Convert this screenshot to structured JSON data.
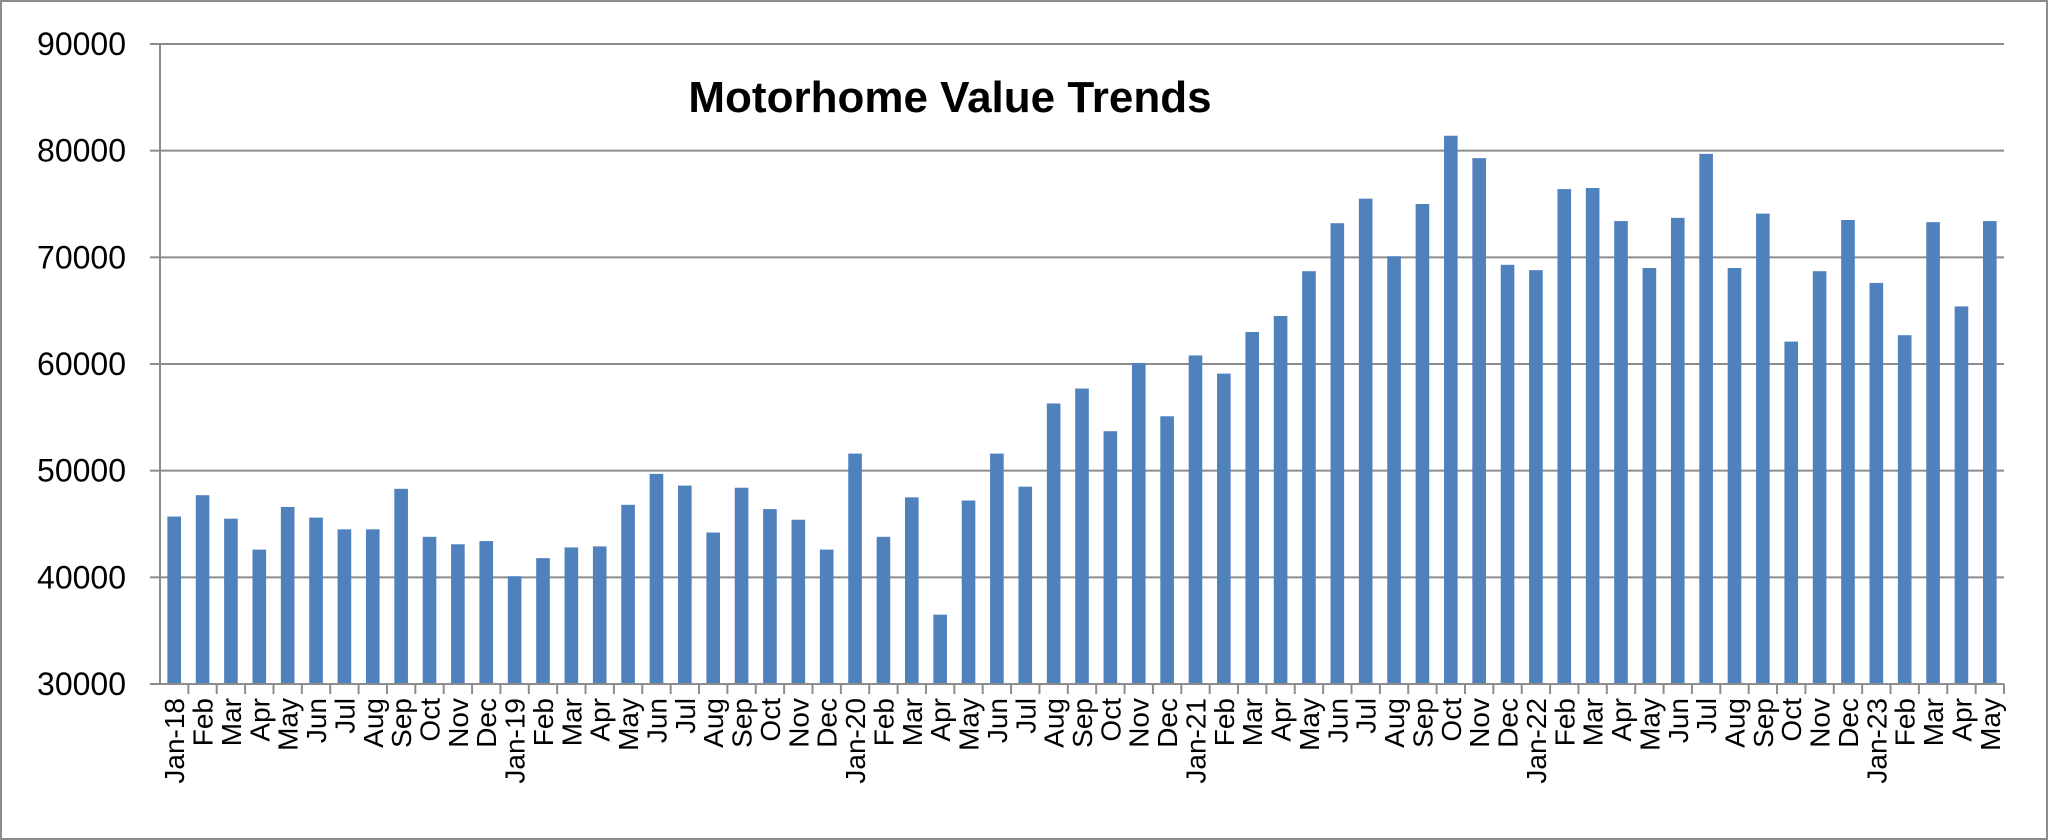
{
  "chart_data": {
    "type": "bar",
    "title": "Motorhome Value Trends",
    "xlabel": "",
    "ylabel": "",
    "ylim": [
      30000,
      90000
    ],
    "y_ticks": [
      30000,
      40000,
      50000,
      60000,
      70000,
      80000,
      90000
    ],
    "grid": true,
    "legend": "none",
    "bar_color": "#4f81bd",
    "categories": [
      "Jan-18",
      "Feb",
      "Mar",
      "Apr",
      "May",
      "Jun",
      "Jul",
      "Aug",
      "Sep",
      "Oct",
      "Nov",
      "Dec",
      "Jan-19",
      "Feb",
      "Mar",
      "Apr",
      "May",
      "Jun",
      "Jul",
      "Aug",
      "Sep",
      "Oct",
      "Nov",
      "Dec",
      "Jan-20",
      "Feb",
      "Mar",
      "Apr",
      "May",
      "Jun",
      "Jul",
      "Aug",
      "Sep",
      "Oct",
      "Nov",
      "Dec",
      "Jan-21",
      "Feb",
      "Mar",
      "Apr",
      "May",
      "Jun",
      "Jul",
      "Aug",
      "Sep",
      "Oct",
      "Nov",
      "Dec",
      "Jan-22",
      "Feb",
      "Mar",
      "Apr",
      "May",
      "Jun",
      "Jul",
      "Aug",
      "Sep",
      "Oct",
      "Nov",
      "Dec",
      "Jan-23",
      "Feb",
      "Mar",
      "Apr",
      "May"
    ],
    "values": [
      45700,
      47700,
      45500,
      42600,
      46600,
      45600,
      44500,
      44500,
      48300,
      43800,
      43100,
      43400,
      40100,
      41800,
      42800,
      42900,
      46800,
      49700,
      48600,
      44200,
      48400,
      46400,
      45400,
      42600,
      51600,
      43800,
      47500,
      36500,
      47200,
      51600,
      48500,
      56300,
      57700,
      53700,
      60100,
      55100,
      60800,
      59100,
      63000,
      64500,
      68700,
      73200,
      75500,
      70100,
      75000,
      81400,
      79300,
      69300,
      68800,
      76400,
      76500,
      73400,
      69000,
      73700,
      79700,
      69000,
      74100,
      62100,
      68700,
      73500,
      67600,
      62700,
      73300,
      65400,
      73400
    ]
  }
}
